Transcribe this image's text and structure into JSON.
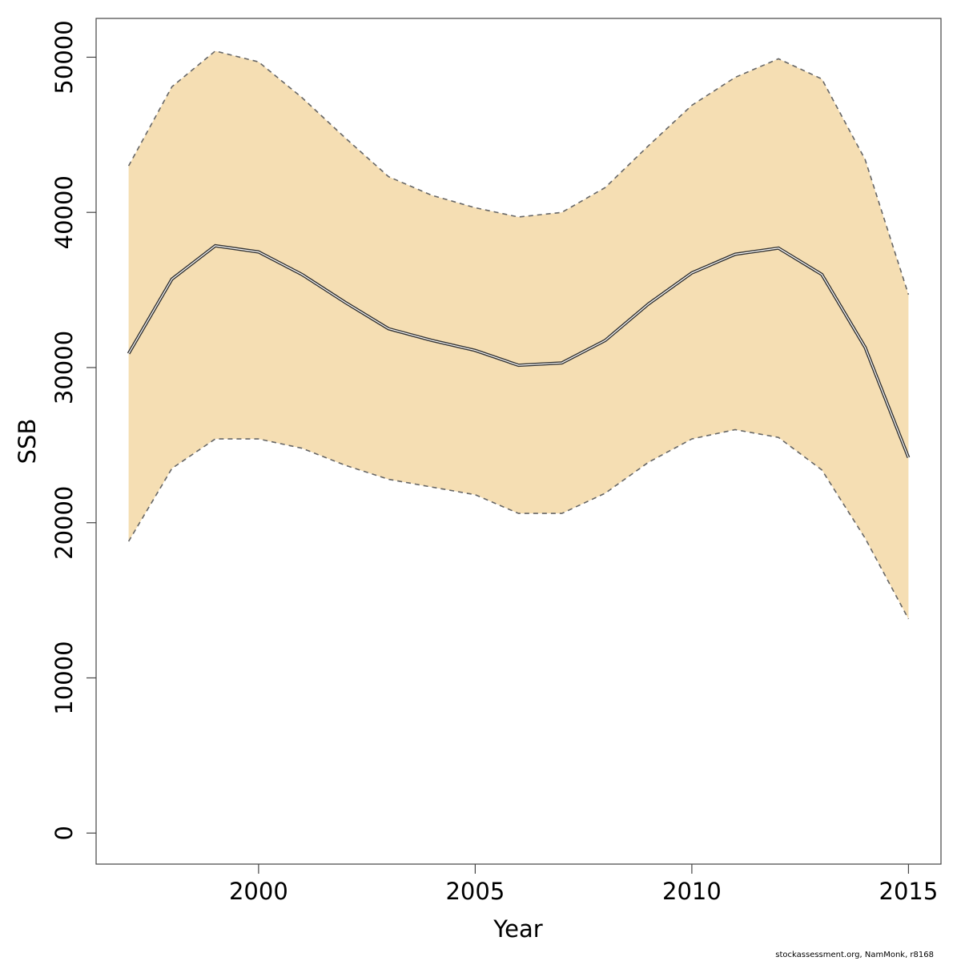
{
  "chart_data": {
    "type": "area",
    "title": "",
    "xlabel": "Year",
    "ylabel": "SSB",
    "xlim": [
      1996.25,
      2015.75
    ],
    "ylim": [
      -2000,
      52500
    ],
    "x_ticks": [
      2000,
      2005,
      2010,
      2015
    ],
    "y_ticks": [
      0,
      10000,
      20000,
      30000,
      40000,
      50000
    ],
    "x": [
      1997,
      1998,
      1999,
      2000,
      2001,
      2002,
      2003,
      2004,
      2005,
      2006,
      2007,
      2008,
      2009,
      2010,
      2011,
      2012,
      2013,
      2014,
      2015
    ],
    "series": [
      {
        "values": [
          30900,
          35700,
          37850,
          37450,
          36000,
          34200,
          32500,
          31750,
          31100,
          30150,
          30300,
          31750,
          34100,
          36100,
          37300,
          37700,
          36000,
          31300,
          24200
        ]
      },
      {
        "values": [
          43000,
          48100,
          50400,
          49700,
          47400,
          44800,
          42300,
          41100,
          40300,
          39700,
          40000,
          41600,
          44300,
          46900,
          48700,
          49900,
          48600,
          43400,
          34700
        ]
      },
      {
        "values": [
          18800,
          23500,
          25400,
          25400,
          24800,
          23700,
          22800,
          22300,
          21800,
          20600,
          20600,
          21900,
          23900,
          25400,
          26000,
          25500,
          23400,
          19000,
          13800
        ]
      }
    ],
    "band_color": "#f5deb3",
    "line_color": "#333333",
    "bound_line_color": "#666666",
    "grid": false
  },
  "footer": {
    "text": "stockassessment.org, NamMonk, r8168"
  }
}
